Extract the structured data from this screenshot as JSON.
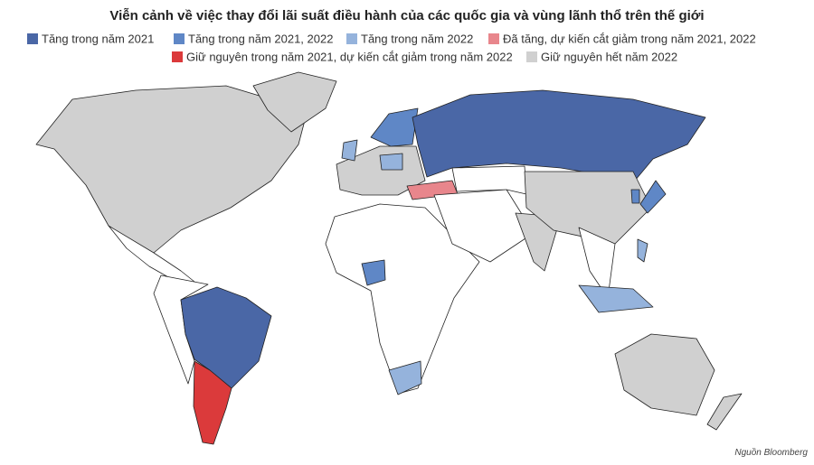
{
  "title": "Viễn cảnh về việc thay đổi lãi suất điều hành của các quốc gia và vùng lãnh thổ trên thế giới",
  "legend": [
    {
      "label": "Tăng trong năm 2021",
      "color": "#4a67a6"
    },
    {
      "label": "Tăng trong năm 2021, 2022",
      "color": "#5f87c6"
    },
    {
      "label": "Tăng trong năm 2022",
      "color": "#95b3dc"
    },
    {
      "label": "Đã tăng, dự kiến cắt giảm trong năm 2021, 2022",
      "color": "#e8868c"
    },
    {
      "label": "Giữ nguyên trong năm 2021, dự kiến cắt giảm trong năm 2022",
      "color": "#db3a3b"
    },
    {
      "label": "Giữ nguyên hết năm 2022",
      "color": "#d0d0d0"
    }
  ],
  "source": "Nguồn Bloomberg"
}
